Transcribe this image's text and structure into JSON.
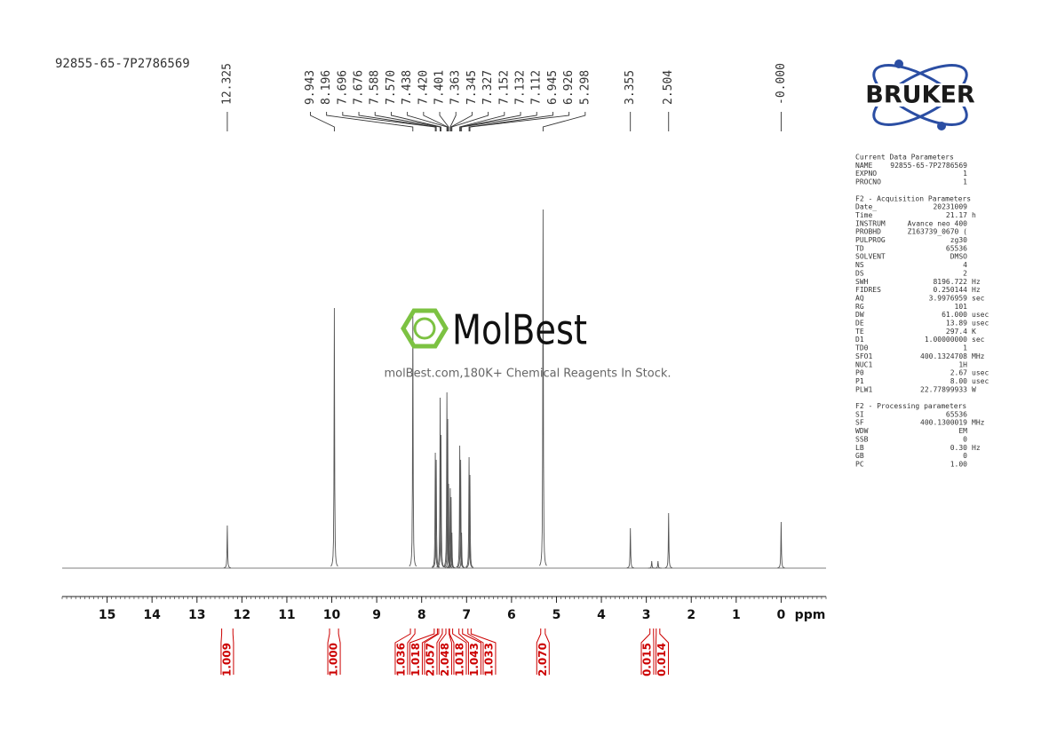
{
  "sample_title": "92855-65-7P2786569",
  "logo": "BRUKER",
  "watermark": {
    "brand": "MolBest",
    "tagline": "molBest.com,180K+ Chemical Reagents In Stock."
  },
  "chart_data": {
    "type": "nmr",
    "x_label": "ppm",
    "xlim": [
      16,
      -1
    ],
    "xticks": [
      15,
      14,
      13,
      12,
      11,
      10,
      9,
      8,
      7,
      6,
      5,
      4,
      3,
      2,
      1,
      0
    ],
    "xminor": 0.1,
    "ylim": [
      0,
      420
    ],
    "color": "#555555",
    "x": [
      12.325,
      9.943,
      8.196,
      7.696,
      7.676,
      7.588,
      7.57,
      7.438,
      7.42,
      7.401,
      7.363,
      7.345,
      7.327,
      7.152,
      7.132,
      7.112,
      6.945,
      6.926,
      5.298,
      3.355,
      2.88,
      2.74,
      2.504,
      0
    ],
    "values": [
      48,
      293,
      290,
      130,
      122,
      192,
      150,
      198,
      168,
      95,
      90,
      80,
      40,
      138,
      122,
      40,
      125,
      105,
      404,
      45,
      8,
      8,
      62,
      52
    ],
    "peak_labels": [
      {
        "value": 12.325,
        "label": "12.325"
      },
      {
        "value": 9.943,
        "label": "9.943"
      },
      {
        "value": 8.196,
        "label": "8.196"
      },
      {
        "value": 7.696,
        "label": "7.696"
      },
      {
        "value": 7.676,
        "label": "7.676"
      },
      {
        "value": 7.588,
        "label": "7.588"
      },
      {
        "value": 7.57,
        "label": "7.570"
      },
      {
        "value": 7.438,
        "label": "7.438"
      },
      {
        "value": 7.42,
        "label": "7.420"
      },
      {
        "value": 7.401,
        "label": "7.401"
      },
      {
        "value": 7.363,
        "label": "7.363"
      },
      {
        "value": 7.345,
        "label": "7.345"
      },
      {
        "value": 7.327,
        "label": "7.327"
      },
      {
        "value": 7.152,
        "label": "7.152"
      },
      {
        "value": 7.132,
        "label": "7.132"
      },
      {
        "value": 7.112,
        "label": "7.112"
      },
      {
        "value": 6.945,
        "label": "6.945"
      },
      {
        "value": 6.926,
        "label": "6.926"
      },
      {
        "value": 5.298,
        "label": "5.298"
      },
      {
        "value": 3.355,
        "label": "3.355"
      },
      {
        "value": 2.504,
        "label": "2.504"
      },
      {
        "value": 0,
        "label": "-0.000"
      }
    ],
    "integrals": {
      "ranges": [
        [
          12.45,
          12.2
        ],
        [
          10.05,
          9.85
        ],
        [
          8.25,
          8.15
        ],
        [
          7.72,
          7.65
        ],
        [
          7.62,
          7.54
        ],
        [
          7.46,
          7.39
        ],
        [
          7.38,
          7.31
        ],
        [
          7.17,
          7.09
        ],
        [
          6.97,
          6.9
        ],
        [
          5.35,
          5.25
        ],
        [
          2.92,
          2.84
        ],
        [
          2.78,
          2.7
        ]
      ],
      "values": [
        1.009,
        1.0,
        1.036,
        1.018,
        2.057,
        2.048,
        1.018,
        1.043,
        1.033,
        2.07,
        0.015,
        0.014
      ],
      "value_labels": [
        "1.009",
        "1.000",
        "1.036",
        "1.018",
        "2.057",
        "2.048",
        "1.018",
        "1.043",
        "1.033",
        "2.070",
        "0.015",
        "0.014"
      ],
      "color": "#cc0000"
    }
  },
  "parameters": [
    {
      "title": "Current Data Parameters",
      "rows": [
        [
          "NAME",
          "92855-65-7P2786569"
        ],
        [
          "EXPNO",
          "1"
        ],
        [
          "PROCNO",
          "1"
        ]
      ]
    },
    {
      "title": "F2 - Acquisition Parameters",
      "rows": [
        [
          "Date_",
          "20231009"
        ],
        [
          "Time",
          "21.17",
          "h"
        ],
        [
          "INSTRUM",
          "Avance neo 400"
        ],
        [
          "PROBHD",
          "Z163739_0670 ("
        ],
        [
          "PULPROG",
          "zg30"
        ],
        [
          "TD",
          "65536"
        ],
        [
          "SOLVENT",
          "DMSO"
        ],
        [
          "NS",
          "4"
        ],
        [
          "DS",
          "2"
        ],
        [
          "SWH",
          "8196.722",
          "Hz"
        ],
        [
          "FIDRES",
          "0.250144",
          "Hz"
        ],
        [
          "AQ",
          "3.9976959",
          "sec"
        ],
        [
          "RG",
          "101"
        ],
        [
          "DW",
          "61.000",
          "usec"
        ],
        [
          "DE",
          "13.89",
          "usec"
        ],
        [
          "TE",
          "297.4",
          "K"
        ],
        [
          "D1",
          "1.00000000",
          "sec"
        ],
        [
          "TD0",
          "1"
        ],
        [
          "SFO1",
          "400.1324708",
          "MHz"
        ],
        [
          "NUC1",
          "1H"
        ],
        [
          "P0",
          "2.67",
          "usec"
        ],
        [
          "P1",
          "8.00",
          "usec"
        ],
        [
          "PLW1",
          "22.77899933",
          "W"
        ]
      ]
    },
    {
      "title": "F2 - Processing parameters",
      "rows": [
        [
          "SI",
          "65536"
        ],
        [
          "SF",
          "400.1300019",
          "MHz"
        ],
        [
          "WDW",
          "EM"
        ],
        [
          "SSB",
          "0"
        ],
        [
          "LB",
          "0.30",
          "Hz"
        ],
        [
          "GB",
          "0"
        ],
        [
          "PC",
          "1.00"
        ]
      ]
    }
  ]
}
